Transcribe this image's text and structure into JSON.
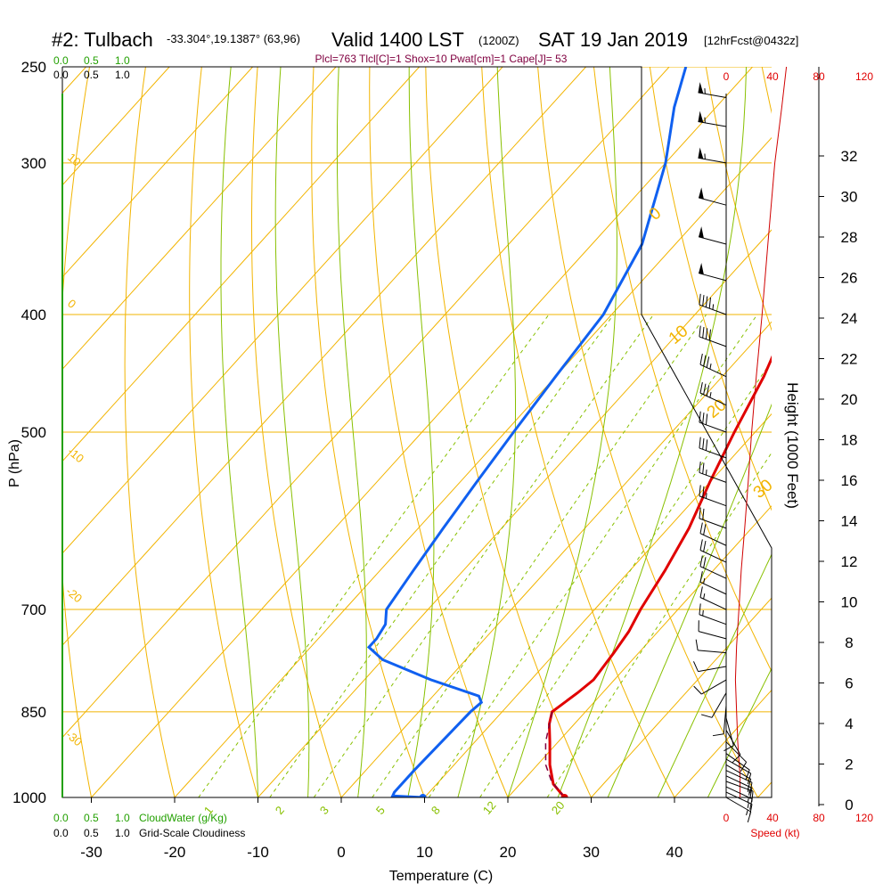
{
  "header": {
    "station": "#2: Tulbach",
    "coords": "-33.304°,19.1387° (63,96)",
    "valid": "Valid 1400 LST",
    "zulu": "(1200Z)",
    "date": "SAT 19 Jan 2019",
    "forecast": "[12hrFcst@0432z]"
  },
  "indices": "Plcl=763 Tlcl[C]=1 Shox=10 Pwat[cm]=1 Cape[J]= 53",
  "colors": {
    "isotherm": "#f2b400",
    "dry_adiabat": "#f2b400",
    "moist_adiabat": "#88c000",
    "mixing_ratio": "#88c000",
    "temperature": "#e00000",
    "dewpoint": "#1060f0",
    "parcel": "#800040",
    "cloud": "#22a000",
    "wind": "#d00000",
    "indices": "#800040"
  },
  "chart_data": {
    "type": "line",
    "xlabel": "Temperature (C)",
    "ylabel": "P (hPa)",
    "y2label": "Height (1000 Feet)",
    "x_ticks": [
      -30,
      -20,
      -10,
      0,
      10,
      20,
      30,
      40
    ],
    "p_ticks": [
      250,
      300,
      400,
      500,
      700,
      850,
      1000
    ],
    "height_ticks": [
      0,
      2,
      4,
      6,
      8,
      10,
      12,
      14,
      16,
      18,
      20,
      22,
      24,
      26,
      28,
      30,
      32
    ],
    "xlim": [
      -34,
      46
    ],
    "plim": [
      1000,
      250
    ],
    "dry_adiabat_labels": [
      "0",
      "10",
      "20",
      "30"
    ],
    "moist_adiabat_labels": [
      "10",
      "0",
      "-10",
      "-20",
      "-30"
    ],
    "mixing_ratio_labels": [
      "1",
      "2",
      "3",
      "5",
      "8",
      "12",
      "20"
    ],
    "cloud_water_label": "CloudWater (g/Kg)",
    "cloud_scale_green": [
      "0.0",
      "0.5",
      "1.0"
    ],
    "cloud_scale_black": [
      "0.0",
      "0.5",
      "1.0"
    ],
    "grid_cloudiness_label": "Grid-Scale Cloudiness",
    "speed_label": "Speed (kt)",
    "speed_ticks": [
      "0",
      "40",
      "80",
      "120"
    ],
    "series": [
      {
        "name": "Temperature",
        "points": [
          [
            26.8,
            1000
          ],
          [
            24,
            975
          ],
          [
            21.5,
            940
          ],
          [
            19,
            900
          ],
          [
            17,
            870
          ],
          [
            16,
            850
          ],
          [
            17,
            820
          ],
          [
            17.5,
            800
          ],
          [
            17,
            760
          ],
          [
            16.5,
            730
          ],
          [
            15.5,
            700
          ],
          [
            14.2,
            650
          ],
          [
            12.5,
            600
          ],
          [
            10,
            550
          ],
          [
            7.5,
            500
          ],
          [
            5,
            450
          ],
          [
            1.5,
            400
          ],
          [
            -4,
            350
          ],
          [
            -10,
            300
          ],
          [
            -15,
            270
          ],
          [
            -20,
            250
          ]
        ]
      },
      {
        "name": "Dewpoint",
        "points": [
          [
            9.8,
            1000
          ],
          [
            6,
            997
          ],
          [
            5.8,
            990
          ],
          [
            5.8,
            950
          ],
          [
            6,
            900
          ],
          [
            6.2,
            850
          ],
          [
            6.5,
            835
          ],
          [
            5.5,
            825
          ],
          [
            -2,
            800
          ],
          [
            -10,
            770
          ],
          [
            -13,
            752
          ],
          [
            -13,
            740
          ],
          [
            -13.5,
            720
          ],
          [
            -15,
            700
          ],
          [
            -16,
            650
          ],
          [
            -17,
            600
          ],
          [
            -18,
            550
          ],
          [
            -19,
            500
          ],
          [
            -20,
            450
          ],
          [
            -21,
            400
          ],
          [
            -24,
            350
          ],
          [
            -30,
            300
          ],
          [
            -35,
            270
          ],
          [
            -38,
            250
          ]
        ]
      },
      {
        "name": "Parcel",
        "points": [
          [
            26.8,
            1000
          ],
          [
            23.5,
            970
          ],
          [
            21,
            940
          ],
          [
            18.5,
            900
          ],
          [
            16,
            850
          ]
        ]
      }
    ],
    "wind_speed_profile": [
      [
        12,
        1000
      ],
      [
        12,
        960
      ],
      [
        10,
        900
      ],
      [
        9,
        850
      ],
      [
        8,
        800
      ],
      [
        9,
        750
      ],
      [
        11,
        700
      ],
      [
        13,
        650
      ],
      [
        16,
        600
      ],
      [
        19,
        550
      ],
      [
        22,
        500
      ],
      [
        26,
        450
      ],
      [
        31,
        400
      ],
      [
        36,
        350
      ],
      [
        42,
        300
      ],
      [
        48,
        270
      ],
      [
        52,
        250
      ]
    ],
    "wind_barbs": [
      {
        "p": 1000,
        "dir": 120,
        "spd": 15
      },
      {
        "p": 990,
        "dir": 115,
        "spd": 15
      },
      {
        "p": 980,
        "dir": 115,
        "spd": 15
      },
      {
        "p": 970,
        "dir": 110,
        "spd": 15
      },
      {
        "p": 960,
        "dir": 115,
        "spd": 15
      },
      {
        "p": 950,
        "dir": 115,
        "spd": 10
      },
      {
        "p": 940,
        "dir": 120,
        "spd": 10
      },
      {
        "p": 930,
        "dir": 120,
        "spd": 10
      },
      {
        "p": 920,
        "dir": 125,
        "spd": 10
      },
      {
        "p": 900,
        "dir": 135,
        "spd": 10
      },
      {
        "p": 880,
        "dir": 150,
        "spd": 10
      },
      {
        "p": 860,
        "dir": 165,
        "spd": 10
      },
      {
        "p": 840,
        "dir": 185,
        "spd": 10
      },
      {
        "p": 820,
        "dir": 210,
        "spd": 10
      },
      {
        "p": 800,
        "dir": 240,
        "spd": 10
      },
      {
        "p": 780,
        "dir": 260,
        "spd": 10
      },
      {
        "p": 760,
        "dir": 275,
        "spd": 10
      },
      {
        "p": 740,
        "dir": 285,
        "spd": 10
      },
      {
        "p": 720,
        "dir": 290,
        "spd": 15
      },
      {
        "p": 700,
        "dir": 295,
        "spd": 15
      },
      {
        "p": 680,
        "dir": 295,
        "spd": 15
      },
      {
        "p": 660,
        "dir": 295,
        "spd": 20
      },
      {
        "p": 640,
        "dir": 295,
        "spd": 20
      },
      {
        "p": 620,
        "dir": 295,
        "spd": 20
      },
      {
        "p": 600,
        "dir": 290,
        "spd": 20
      },
      {
        "p": 575,
        "dir": 290,
        "spd": 25
      },
      {
        "p": 550,
        "dir": 290,
        "spd": 25
      },
      {
        "p": 525,
        "dir": 290,
        "spd": 30
      },
      {
        "p": 500,
        "dir": 290,
        "spd": 30
      },
      {
        "p": 475,
        "dir": 295,
        "spd": 35
      },
      {
        "p": 450,
        "dir": 295,
        "spd": 35
      },
      {
        "p": 425,
        "dir": 290,
        "spd": 40
      },
      {
        "p": 400,
        "dir": 290,
        "spd": 45
      },
      {
        "p": 375,
        "dir": 285,
        "spd": 50
      },
      {
        "p": 350,
        "dir": 285,
        "spd": 50
      },
      {
        "p": 325,
        "dir": 285,
        "spd": 50
      },
      {
        "p": 300,
        "dir": 280,
        "spd": 55
      },
      {
        "p": 280,
        "dir": 280,
        "spd": 55
      },
      {
        "p": 265,
        "dir": 280,
        "spd": 55
      }
    ]
  }
}
